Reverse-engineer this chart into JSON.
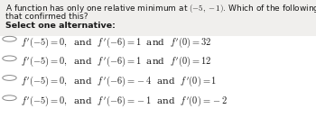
{
  "background_color": "#d8d8d8",
  "inner_bg": "#f0efed",
  "title_line1": "A function has only one relative minimum at $(-5, -1)$. Which of the following could have been the test results",
  "title_line2": "that confirmed this?",
  "select_text": "Select one alternative:",
  "options": [
    "$f'(-5) = 0,$  and  $f'(-6) = 1$  and  $f'(0) = 32$",
    "$f'(-5) = 0,$  and  $f'(-6) = 1$  and  $f'(0) = 12$",
    "$f'(-5) = 0,$  and  $f'(-6) = -4$  and  $f'(0) = 1$",
    "$f'(-5) = 0,$  and  $f'(-6) = -1$  and  $f'(0) = -2$"
  ],
  "title_fontsize": 6.5,
  "select_fontsize": 6.8,
  "option_fontsize": 7.5,
  "text_color": "#1a1a1a",
  "circle_color": "#888888",
  "fig_width": 3.5,
  "fig_height": 1.31,
  "dpi": 100
}
